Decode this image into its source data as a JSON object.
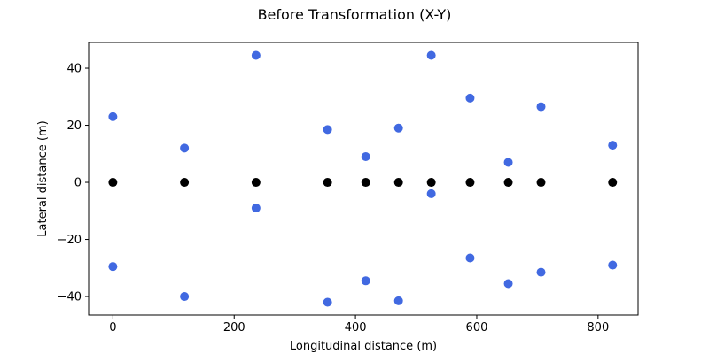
{
  "chart_data": {
    "type": "scatter",
    "title": "Before Transformation (X-Y)",
    "xlabel": "Longitudinal distance (m)",
    "ylabel": "Lateral distance (m)",
    "xlim": [
      -40,
      866
    ],
    "ylim": [
      -46.5,
      49
    ],
    "xticks": [
      0,
      200,
      400,
      600,
      800
    ],
    "yticks": [
      -40,
      -20,
      0,
      20,
      40
    ],
    "xtick_labels": [
      "0",
      "200",
      "400",
      "600",
      "800"
    ],
    "ytick_labels": [
      "−40",
      "−20",
      "0",
      "20",
      "40"
    ],
    "grid": false,
    "series": [
      {
        "color": "#4169e1",
        "points": [
          [
            0,
            23
          ],
          [
            0,
            -29.5
          ],
          [
            118,
            12
          ],
          [
            118,
            -40
          ],
          [
            236,
            44.5
          ],
          [
            236,
            -9
          ],
          [
            354,
            18.5
          ],
          [
            354,
            -42
          ],
          [
            417,
            9
          ],
          [
            417,
            -34.5
          ],
          [
            471,
            19
          ],
          [
            471,
            -41.5
          ],
          [
            525,
            44.5
          ],
          [
            525,
            -4
          ],
          [
            589,
            29.5
          ],
          [
            589,
            -26.5
          ],
          [
            652,
            7
          ],
          [
            652,
            -35.5
          ],
          [
            706,
            26.5
          ],
          [
            706,
            -31.5
          ],
          [
            824,
            13
          ],
          [
            824,
            -29
          ]
        ]
      },
      {
        "color": "#000000",
        "points": [
          [
            0,
            0
          ],
          [
            118,
            0
          ],
          [
            236,
            0
          ],
          [
            354,
            0
          ],
          [
            417,
            0
          ],
          [
            471,
            0
          ],
          [
            525,
            0
          ],
          [
            589,
            0
          ],
          [
            652,
            0
          ],
          [
            706,
            0
          ],
          [
            824,
            0
          ]
        ]
      }
    ]
  }
}
